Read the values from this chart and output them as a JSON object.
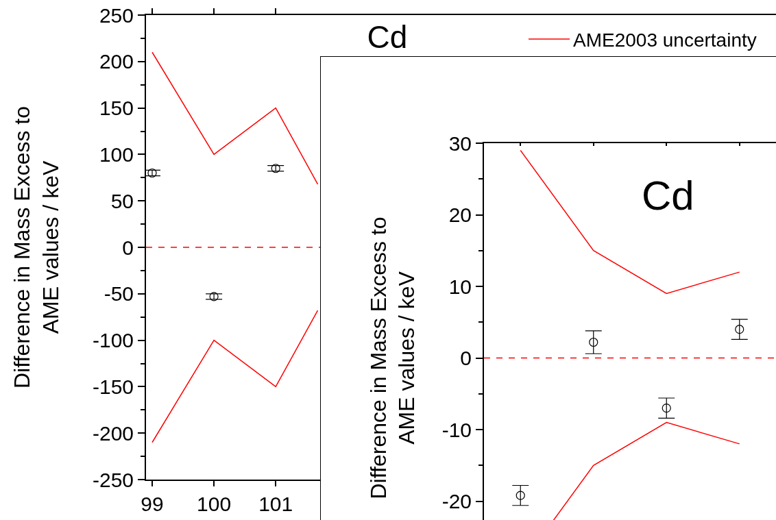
{
  "chart_data": [
    {
      "type": "line",
      "title": "Cd",
      "ylabel": "Difference in Mass Excess to\nAME values / keV",
      "xlim": [
        98.9,
        109.1
      ],
      "xticks": [
        99,
        100,
        101
      ],
      "ylim": [
        -250,
        250
      ],
      "yticks": [
        -250,
        -200,
        -150,
        -100,
        -50,
        0,
        50,
        100,
        150,
        200,
        250
      ],
      "legend": "top right",
      "ref_lines": [
        {
          "axis": "y",
          "value": 0,
          "color": "#ff0000",
          "line_style": "dashed"
        }
      ],
      "series": [
        {
          "name": "AME2003 uncertainty",
          "type": "line",
          "color": "#ff0000",
          "x": [
            99,
            100,
            101,
            101.68
          ],
          "values": [
            210,
            100,
            150,
            68
          ]
        },
        {
          "type": "line",
          "color": "#ff0000",
          "x": [
            99,
            100,
            101,
            101.68
          ],
          "values": [
            -210,
            -100,
            -150,
            -68
          ]
        },
        {
          "type": "scatter",
          "marker": "circle",
          "color": "#000000",
          "x": [
            99,
            100,
            101
          ],
          "values": [
            80,
            -53,
            85
          ],
          "errors": [
            3,
            3,
            3
          ]
        }
      ]
    },
    {
      "type": "line",
      "title": "Cd",
      "ylabel": "Difference in Mass Excess to\nAME values / keV",
      "categories": [
        null,
        null,
        null,
        null
      ],
      "ylim": [
        -30,
        30
      ],
      "yticks": [
        -20,
        -10,
        0,
        10,
        20,
        30
      ],
      "tick_labels": "y",
      "ref_lines": [
        {
          "axis": "y",
          "value": 0,
          "color": "#ff0000",
          "line_style": "dashed"
        }
      ],
      "series": [
        {
          "type": "line",
          "color": "#ff0000",
          "values": [
            29,
            15,
            9,
            12
          ]
        },
        {
          "type": "line",
          "color": "#ff0000",
          "values": [
            -29,
            -15,
            -9,
            -12
          ]
        },
        {
          "type": "scatter",
          "marker": "circle",
          "color": "#000000",
          "values": [
            -19.2,
            2.2,
            -7,
            4
          ],
          "errors": [
            1.4,
            1.6,
            1.4,
            1.4
          ]
        }
      ]
    }
  ]
}
